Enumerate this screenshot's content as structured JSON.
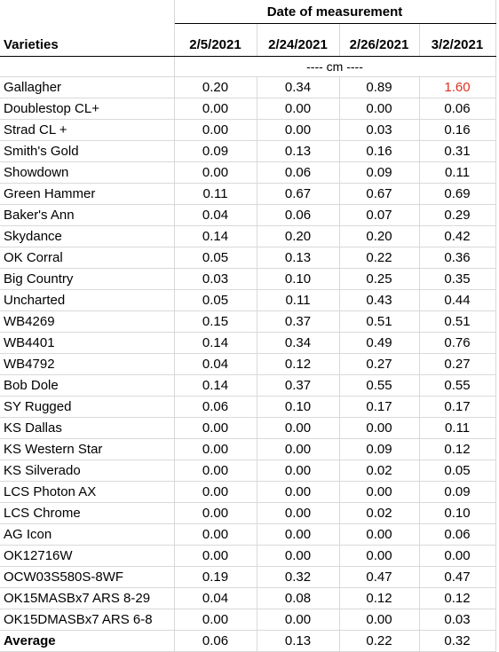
{
  "header": {
    "group_title": "Date of measurement",
    "varieties_label": "Varieties",
    "dates": [
      "2/5/2021",
      "2/24/2021",
      "2/26/2021",
      "3/2/2021"
    ],
    "units": "---- cm ----"
  },
  "rows": [
    {
      "variety": "Gallagher",
      "values": [
        "0.20",
        "0.34",
        "0.89",
        "1.60"
      ]
    },
    {
      "variety": "Doublestop CL+",
      "values": [
        "0.00",
        "0.00",
        "0.00",
        "0.06"
      ]
    },
    {
      "variety": "Strad CL +",
      "values": [
        "0.00",
        "0.00",
        "0.03",
        "0.16"
      ]
    },
    {
      "variety": "Smith's Gold",
      "values": [
        "0.09",
        "0.13",
        "0.16",
        "0.31"
      ]
    },
    {
      "variety": "Showdown",
      "values": [
        "0.00",
        "0.06",
        "0.09",
        "0.11"
      ]
    },
    {
      "variety": "Green Hammer",
      "values": [
        "0.11",
        "0.67",
        "0.67",
        "0.69"
      ]
    },
    {
      "variety": "Baker's Ann",
      "values": [
        "0.04",
        "0.06",
        "0.07",
        "0.29"
      ]
    },
    {
      "variety": "Skydance",
      "values": [
        "0.14",
        "0.20",
        "0.20",
        "0.42"
      ]
    },
    {
      "variety": "OK Corral",
      "values": [
        "0.05",
        "0.13",
        "0.22",
        "0.36"
      ]
    },
    {
      "variety": "Big Country",
      "values": [
        "0.03",
        "0.10",
        "0.25",
        "0.35"
      ]
    },
    {
      "variety": "Uncharted",
      "values": [
        "0.05",
        "0.11",
        "0.43",
        "0.44"
      ]
    },
    {
      "variety": "WB4269",
      "values": [
        "0.15",
        "0.37",
        "0.51",
        "0.51"
      ]
    },
    {
      "variety": "WB4401",
      "values": [
        "0.14",
        "0.34",
        "0.49",
        "0.76"
      ]
    },
    {
      "variety": "WB4792",
      "values": [
        "0.04",
        "0.12",
        "0.27",
        "0.27"
      ]
    },
    {
      "variety": "Bob Dole",
      "values": [
        "0.14",
        "0.37",
        "0.55",
        "0.55"
      ]
    },
    {
      "variety": "SY Rugged",
      "values": [
        "0.06",
        "0.10",
        "0.17",
        "0.17"
      ]
    },
    {
      "variety": "KS Dallas",
      "values": [
        "0.00",
        "0.00",
        "0.00",
        "0.11"
      ]
    },
    {
      "variety": "KS Western Star",
      "values": [
        "0.00",
        "0.00",
        "0.09",
        "0.12"
      ]
    },
    {
      "variety": "KS Silverado",
      "values": [
        "0.00",
        "0.00",
        "0.02",
        "0.05"
      ]
    },
    {
      "variety": "LCS Photon AX",
      "values": [
        "0.00",
        "0.00",
        "0.00",
        "0.09"
      ]
    },
    {
      "variety": "LCS Chrome",
      "values": [
        "0.00",
        "0.00",
        "0.02",
        "0.10"
      ]
    },
    {
      "variety": "AG Icon",
      "values": [
        "0.00",
        "0.00",
        "0.00",
        "0.06"
      ]
    },
    {
      "variety": "OK12716W",
      "values": [
        "0.00",
        "0.00",
        "0.00",
        "0.00"
      ]
    },
    {
      "variety": "OCW03S580S-8WF",
      "values": [
        "0.19",
        "0.32",
        "0.47",
        "0.47"
      ]
    },
    {
      "variety": "OK15MASBx7 ARS 8-29",
      "values": [
        "0.04",
        "0.08",
        "0.12",
        "0.12"
      ]
    },
    {
      "variety": "OK15DMASBx7 ARS 6-8",
      "values": [
        "0.00",
        "0.00",
        "0.00",
        "0.03"
      ]
    }
  ],
  "average": {
    "label": "Average",
    "values": [
      "0.06",
      "0.13",
      "0.22",
      "0.32"
    ]
  },
  "colors": {
    "highlight": "#e0301e"
  }
}
